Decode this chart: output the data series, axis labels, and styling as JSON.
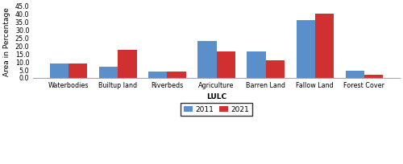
{
  "categories": [
    "Waterbodies",
    "Builtup land",
    "Riverbeds",
    "Agriculture",
    "Barren Land",
    "Fallow Land",
    "Forest Cover"
  ],
  "values_2011": [
    9.0,
    7.2,
    4.2,
    23.0,
    16.8,
    36.2,
    4.5
  ],
  "values_2021": [
    9.2,
    17.5,
    4.2,
    16.5,
    11.0,
    40.2,
    2.0
  ],
  "color_2011": "#5B8FCA",
  "color_2021": "#D03030",
  "xlabel": "LULC",
  "ylabel": "Area in Percentage",
  "ylim": [
    0,
    45.0
  ],
  "yticks": [
    0.0,
    5.0,
    10.0,
    15.0,
    20.0,
    25.0,
    30.0,
    35.0,
    40.0,
    45.0
  ],
  "legend_labels": [
    "2011",
    "2021"
  ],
  "bar_width": 0.38,
  "axis_fontsize": 6.5,
  "tick_fontsize": 5.8,
  "legend_fontsize": 6.5
}
